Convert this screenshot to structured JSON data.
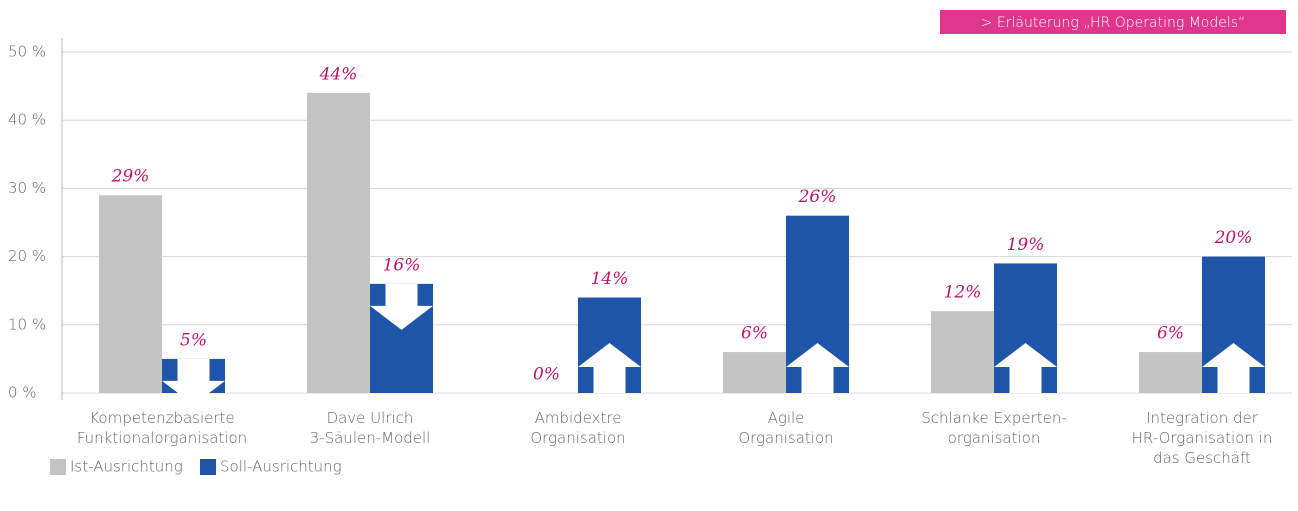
{
  "chart_data": {
    "type": "bar",
    "link": "> Erläuterung „HR Operating Models“",
    "categories": [
      "Kompetenzbasierte\nFunktionalorganisation",
      "Dave Ulrich\n3-Säulen-Modell",
      "Ambidextre\nOrganisation",
      "Agile\nOrganisation",
      "Schlanke Experten-\norganisation",
      "Integration der\nHR-Organisation in\ndas Geschäft"
    ],
    "series": [
      {
        "name": "Ist-Ausrichtung",
        "color": "#c4c4c4",
        "values": [
          29,
          44,
          0,
          6,
          12,
          6
        ],
        "value_labels": [
          "29%",
          "44%",
          "0%",
          "6%",
          "12%",
          "6%"
        ]
      },
      {
        "name": "Soll-Ausrichtung",
        "color": "#1f55a8",
        "values": [
          5,
          16,
          14,
          26,
          19,
          20
        ],
        "value_labels": [
          "5%",
          "16%",
          "14%",
          "26%",
          "19%",
          "20%"
        ]
      }
    ],
    "ylim": [
      0,
      50
    ],
    "yticks": [
      {
        "value": 0,
        "label": "0 %"
      },
      {
        "value": 10,
        "label": "10 %"
      },
      {
        "value": 20,
        "label": "20 %"
      },
      {
        "value": 30,
        "label": "30 %"
      },
      {
        "value": 40,
        "label": "40 %"
      },
      {
        "value": 50,
        "label": "50 %"
      }
    ],
    "grid": true,
    "legend": "bottom-left",
    "label_color": "#c0136b"
  }
}
